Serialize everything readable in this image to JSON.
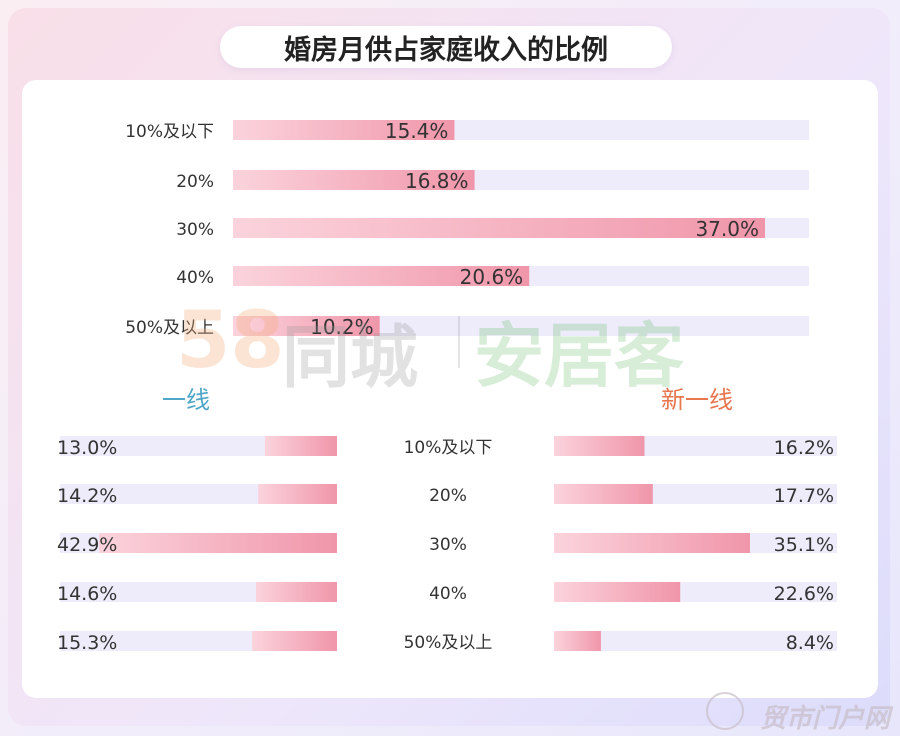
{
  "title": "婚房月供占家庭收入的比例",
  "watermark": {
    "number": "58",
    "brand": "同城",
    "product": "安居客",
    "corner": "贸市门户网"
  },
  "colors": {
    "bar_fill": "#f3a7b8",
    "bar_fill_light": "#fbd7df",
    "track": "#eeecfa",
    "tier1_title": "#4fa6c6",
    "newtier1_title": "#e7774f"
  },
  "chart_data": [
    {
      "type": "bar",
      "orientation": "horizontal",
      "categories": [
        "10%及以下",
        "20%",
        "30%",
        "40%",
        "50%及以上"
      ],
      "values": [
        15.4,
        16.8,
        37.0,
        20.6,
        10.2
      ],
      "labels": [
        "15.4%",
        "16.8%",
        "37.0%",
        "20.6%",
        "10.2%"
      ],
      "xlim": [
        0,
        40
      ]
    },
    {
      "type": "bar",
      "orientation": "horizontal",
      "title": "一线",
      "categories": [
        "10%及以下",
        "20%",
        "30%",
        "40%",
        "50%及以上"
      ],
      "values": [
        13.0,
        14.2,
        42.9,
        14.6,
        15.3
      ],
      "labels": [
        "13.0%",
        "14.2%",
        "42.9%",
        "14.6%",
        "15.3%"
      ],
      "xlim": [
        0,
        45
      ]
    },
    {
      "type": "bar",
      "orientation": "horizontal",
      "title": "新一线",
      "categories": [
        "10%及以下",
        "20%",
        "30%",
        "40%",
        "50%及以上"
      ],
      "values": [
        16.2,
        17.7,
        35.1,
        22.6,
        8.4
      ],
      "labels": [
        "16.2%",
        "17.7%",
        "35.1%",
        "22.6%",
        "8.4%"
      ],
      "xlim": [
        0,
        45
      ]
    }
  ]
}
